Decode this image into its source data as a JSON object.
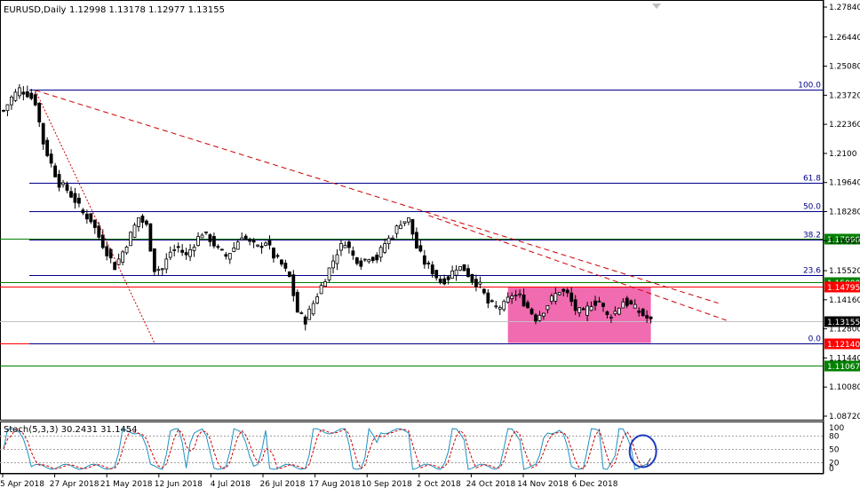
{
  "header": {
    "symbol": "EURUSD,Daily",
    "ohlc": "1.12998 1.13178 1.12977 1.13155"
  },
  "chart_data": {
    "type": "candlestick",
    "symbol": "EURUSD",
    "timeframe": "Daily",
    "last_ohlc": {
      "open": 1.12998,
      "high": 1.13178,
      "low": 1.12977,
      "close": 1.13155
    },
    "ylim": [
      1.0872,
      1.2784
    ],
    "price_ticks": [
      "1.27840",
      "1.26440",
      "1.25080",
      "1.23720",
      "1.22360",
      "1.2100",
      "1.19640",
      "1.18280",
      "1.16920",
      "1.15520",
      "1.14160",
      "1.12800",
      "1.11440",
      "1.10080",
      "1.08720"
    ],
    "price_tick_values": [
      1.2784,
      1.2644,
      1.2508,
      1.2372,
      1.2236,
      1.21,
      1.1964,
      1.1828,
      1.1692,
      1.1552,
      1.1416,
      1.128,
      1.1144,
      1.1008,
      1.0872
    ],
    "date_labels": [
      "5 Apr 2018",
      "27 Apr 2018",
      "21 May 2018",
      "12 Jun 2018",
      "4 Jul 2018",
      "26 Jul 2018",
      "17 Aug 2018",
      "10 Sep 2018",
      "2 Oct 2018",
      "24 Oct 2018",
      "14 Nov 2018",
      "6 Dec 2018"
    ],
    "close_path": [
      [
        0,
        1.23
      ],
      [
        2,
        1.236
      ],
      [
        4,
        1.24
      ],
      [
        6,
        1.238
      ],
      [
        8,
        1.234
      ],
      [
        10,
        1.215
      ],
      [
        12,
        1.205
      ],
      [
        14,
        1.196
      ],
      [
        16,
        1.193
      ],
      [
        18,
        1.188
      ],
      [
        20,
        1.182
      ],
      [
        22,
        1.179
      ],
      [
        24,
        1.171
      ],
      [
        26,
        1.164
      ],
      [
        28,
        1.157
      ],
      [
        30,
        1.164
      ],
      [
        32,
        1.172
      ],
      [
        34,
        1.18
      ],
      [
        36,
        1.176
      ],
      [
        38,
        1.156
      ],
      [
        40,
        1.156
      ],
      [
        42,
        1.164
      ],
      [
        44,
        1.166
      ],
      [
        46,
        1.162
      ],
      [
        48,
        1.168
      ],
      [
        50,
        1.173
      ],
      [
        52,
        1.17
      ],
      [
        54,
        1.165
      ],
      [
        56,
        1.162
      ],
      [
        58,
        1.166
      ],
      [
        60,
        1.172
      ],
      [
        62,
        1.168
      ],
      [
        64,
        1.166
      ],
      [
        66,
        1.169
      ],
      [
        68,
        1.162
      ],
      [
        70,
        1.158
      ],
      [
        72,
        1.152
      ],
      [
        74,
        1.136
      ],
      [
        76,
        1.132
      ],
      [
        78,
        1.14
      ],
      [
        80,
        1.148
      ],
      [
        82,
        1.156
      ],
      [
        84,
        1.164
      ],
      [
        86,
        1.169
      ],
      [
        88,
        1.162
      ],
      [
        90,
        1.159
      ],
      [
        92,
        1.162
      ],
      [
        94,
        1.161
      ],
      [
        96,
        1.168
      ],
      [
        98,
        1.172
      ],
      [
        100,
        1.178
      ],
      [
        102,
        1.179
      ],
      [
        104,
        1.166
      ],
      [
        106,
        1.159
      ],
      [
        108,
        1.155
      ],
      [
        110,
        1.15
      ],
      [
        112,
        1.152
      ],
      [
        114,
        1.157
      ],
      [
        116,
        1.156
      ],
      [
        118,
        1.151
      ],
      [
        120,
        1.148
      ],
      [
        122,
        1.14
      ],
      [
        124,
        1.138
      ],
      [
        126,
        1.139
      ],
      [
        128,
        1.144
      ],
      [
        130,
        1.143
      ],
      [
        132,
        1.138
      ],
      [
        134,
        1.133
      ],
      [
        136,
        1.137
      ],
      [
        138,
        1.142
      ],
      [
        140,
        1.146
      ],
      [
        142,
        1.144
      ],
      [
        144,
        1.137
      ],
      [
        146,
        1.135
      ],
      [
        148,
        1.14
      ],
      [
        150,
        1.141
      ],
      [
        152,
        1.134
      ],
      [
        154,
        1.136
      ],
      [
        156,
        1.141
      ],
      [
        158,
        1.139
      ],
      [
        160,
        1.136
      ],
      [
        162,
        1.133
      ],
      [
        163,
        1.13155
      ]
    ],
    "fibonacci": {
      "levels": [
        {
          "label": "100.0",
          "price": 1.24
        },
        {
          "label": "61.8",
          "price": 1.1964
        },
        {
          "label": "50.0",
          "price": 1.183
        },
        {
          "label": "38.2",
          "price": 1.1696
        },
        {
          "label": "23.6",
          "price": 1.1533
        },
        {
          "label": "0.0",
          "price": 1.1214
        }
      ],
      "color": "#00008b"
    },
    "horizontal_levels": [
      {
        "price": 1.17,
        "label": "1.17000",
        "color": "#008000"
      },
      {
        "price": 1.15,
        "label": "1.15000",
        "color": "#008000"
      },
      {
        "price": 1.1479,
        "label": "1.14795",
        "color": "#ff0000"
      },
      {
        "price": 1.1214,
        "label": "1.12140",
        "color": "#ff0000"
      },
      {
        "price": 1.11067,
        "label": "1.11067",
        "color": "#008000"
      }
    ],
    "current_price": {
      "price": 1.13155,
      "label": "1.13155"
    },
    "trendlines": [
      {
        "from": [
          8,
          1.2395
        ],
        "to": [
          180,
          1.14
        ],
        "color": "#cc0000",
        "style": "dashed"
      },
      {
        "from": [
          107,
          1.181
        ],
        "to": [
          182,
          1.132
        ],
        "color": "#cc0000",
        "style": "dashed"
      },
      {
        "from": [
          8,
          1.2395
        ],
        "to": [
          38,
          1.1214
        ],
        "color": "#cc0000",
        "style": "dotted"
      }
    ],
    "consolidation_box": {
      "x_from": 127,
      "x_to": 163,
      "price_top": 1.1474,
      "price_bottom": 1.1214,
      "color": "#f06bb0"
    },
    "stochastic": {
      "title": "Stoch(5,3,3) 30.2431 31.1454",
      "main": 30.2431,
      "signal": 31.1454,
      "levels": [
        "80",
        "50",
        "20"
      ],
      "top_label": "100",
      "bottom_label": "0",
      "main_color": "#1e90c0",
      "signal_color": "#d00000"
    },
    "annotation_circle": {
      "color": "#1a3bbf"
    }
  }
}
